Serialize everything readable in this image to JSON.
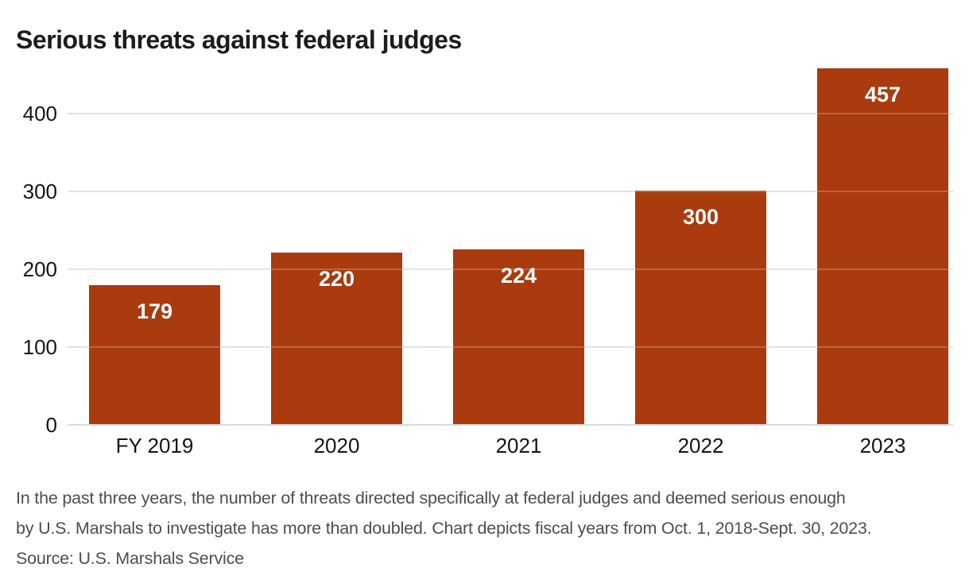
{
  "title": "Serious threats against federal judges",
  "chart_data": {
    "type": "bar",
    "categories": [
      "FY 2019",
      "2020",
      "2021",
      "2022",
      "2023"
    ],
    "values": [
      179,
      220,
      224,
      300,
      457
    ],
    "title": "Serious threats against federal judges",
    "xlabel": "",
    "ylabel": "",
    "ylim": [
      0,
      400
    ],
    "yticks": [
      0,
      100,
      200,
      300,
      400
    ],
    "grid": "horizontal",
    "legend": "none",
    "bar_color": "#a93b0e",
    "value_label_color": "#ffffff",
    "gridline_color": "#d9dbe1",
    "axis_text_color": "#141414"
  },
  "caption": {
    "lines": [
      "In the past three years, the number of threats directed specifically at federal judges and deemed serious enough",
      "by U.S. Marshals to investigate has more than doubled. Chart depicts fiscal years from Oct. 1, 2018-Sept. 30, 2023."
    ],
    "source": "Source: U.S. Marshals Service",
    "text_color": "#4e4e4e"
  }
}
